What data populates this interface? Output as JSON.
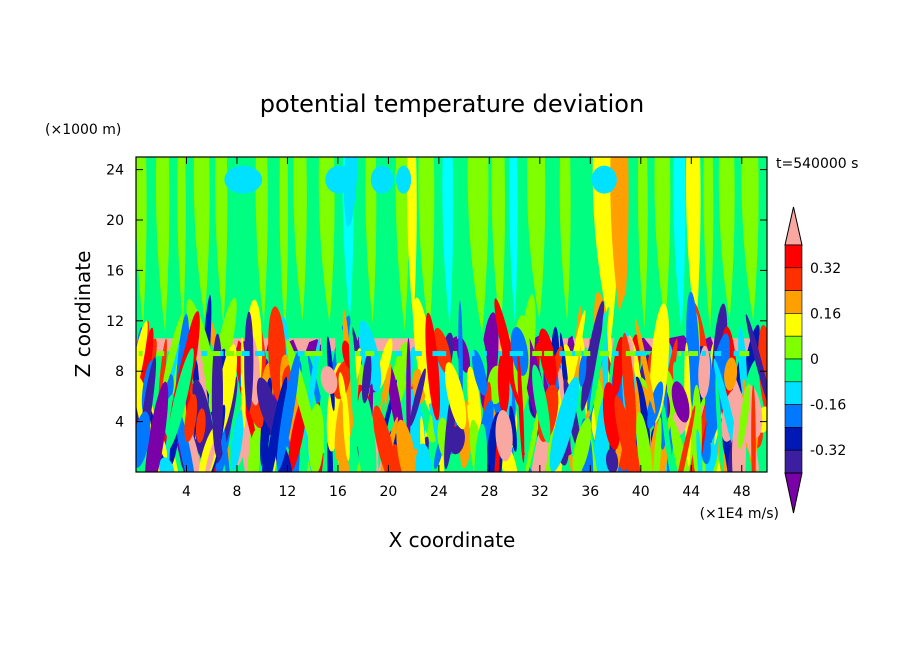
{
  "chart_data": {
    "type": "heatmap",
    "title": "potential temperature deviation",
    "xlabel": "X coordinate",
    "ylabel": "Z coordinate",
    "x_unit": "(×1E4 m/s)",
    "y_unit": "(×1000 m)",
    "time_label": "t=540000 s",
    "xlim": [
      0,
      50
    ],
    "ylim": [
      0,
      25
    ],
    "x_ticks": [
      4,
      8,
      12,
      16,
      20,
      24,
      28,
      32,
      36,
      40,
      44,
      48
    ],
    "y_ticks": [
      4,
      8,
      12,
      16,
      20,
      24
    ],
    "grid": false,
    "colorbar": {
      "placement": "right",
      "extend": "both",
      "levels": [
        -0.4,
        -0.32,
        -0.24,
        -0.16,
        -0.08,
        0,
        0.08,
        0.16,
        0.24,
        0.32,
        0.4
      ],
      "tick_labels": [
        "0.32",
        "0.16",
        "0",
        "-0.16",
        "-0.32"
      ],
      "tick_values": [
        0.32,
        0.16,
        0,
        -0.16,
        -0.32
      ],
      "colors": [
        "#7a00a8",
        "#3c1ea0",
        "#0018b4",
        "#0078ff",
        "#00e0ff",
        "#00ff80",
        "#80ff00",
        "#ffff00",
        "#ffa000",
        "#ff3000",
        "#ff0000",
        "#f8a8a0"
      ]
    },
    "upper_layer_colors": [
      "#80ff00",
      "#00ff80",
      "#00ffff",
      "#ffff00",
      "#ffa000"
    ],
    "layer_values": {
      "upper_green_zone": {
        "z_range": [
          10.6,
          25
        ],
        "dominant_value": 0.04
      },
      "tropopause_band": {
        "z_range": [
          9.6,
          10.6
        ],
        "values": [
          0.44,
          -0.44
        ]
      },
      "turbulent_layer": {
        "z_range": [
          0,
          9.6
        ],
        "value_range": [
          -0.44,
          0.44
        ]
      }
    }
  }
}
